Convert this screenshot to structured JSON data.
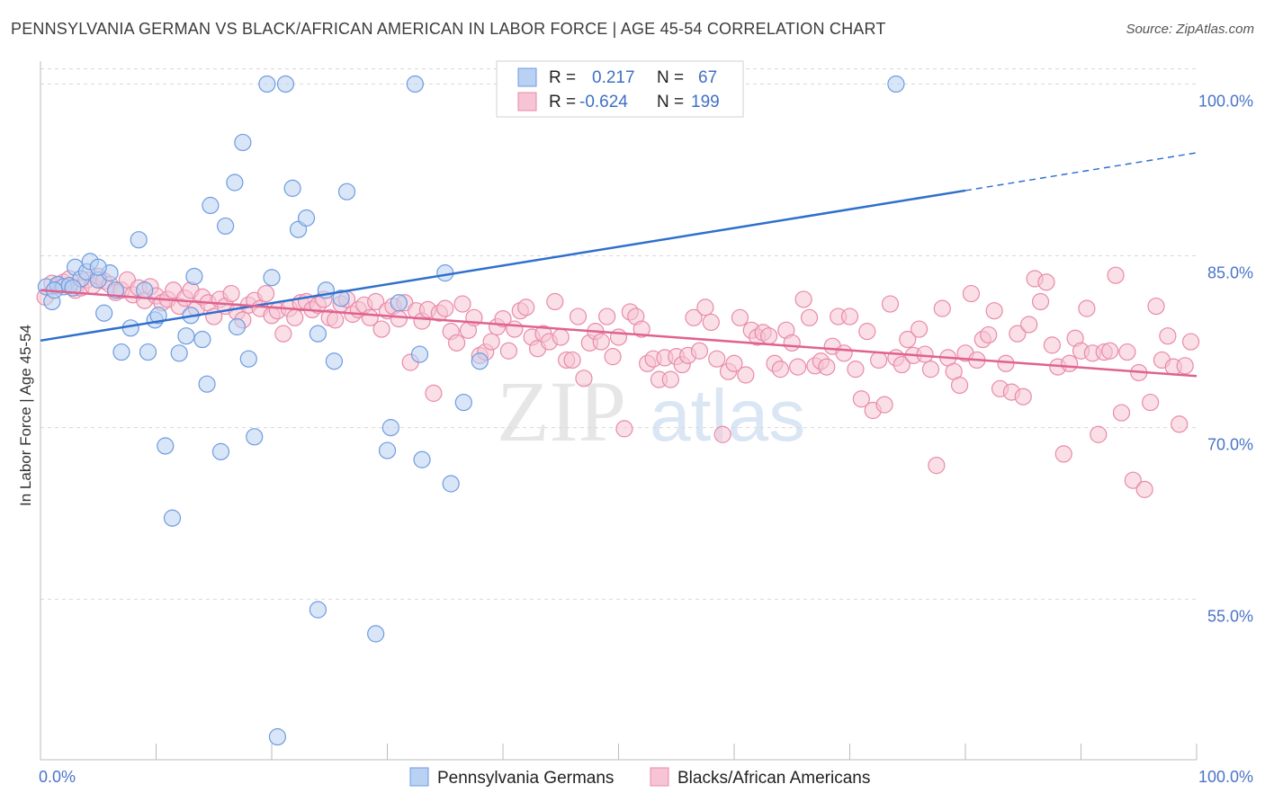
{
  "title": "PENNSYLVANIA GERMAN VS BLACK/AFRICAN AMERICAN IN LABOR FORCE | AGE 45-54 CORRELATION CHART",
  "source": "Source: ZipAtlas.com",
  "watermark": {
    "zip": "ZIP",
    "atlas": "atlas"
  },
  "colors": {
    "blue_fill": "#b9d1f3",
    "blue_stroke": "#6f9be0",
    "blue_line": "#2f6fcd",
    "pink_fill": "#f6c4d4",
    "pink_stroke": "#e98aaa",
    "pink_line": "#e0628f",
    "tick_text": "#4a74c9",
    "grid": "#d8d8d8"
  },
  "legend": {
    "rows": [
      {
        "r_label": "R =",
        "r_value": "0.217",
        "n_label": "N =",
        "n_value": "67"
      },
      {
        "r_label": "R =",
        "r_value": "-0.624",
        "n_label": "N =",
        "n_value": "199"
      }
    ],
    "placement": "top-center"
  },
  "chart_data": {
    "type": "scatter",
    "xlabel": "",
    "ylabel": "In Labor Force | Age 45-54",
    "xlim": [
      0,
      100
    ],
    "ylim": [
      41,
      102
    ],
    "x_tick_labels": [
      "0.0%",
      "100.0%"
    ],
    "y_ticks": [
      55,
      70,
      85,
      100
    ],
    "y_tick_labels": [
      "55.0%",
      "70.0%",
      "85.0%",
      "100.0%"
    ],
    "grid": true,
    "series": [
      {
        "name": "Pennsylvania Germans",
        "color": "blue",
        "trend": {
          "x0": 0,
          "y0": 77.6,
          "x1": 80,
          "y1": 90.7,
          "dash_to_x": 100,
          "dash_to_y": 94.0
        },
        "points": [
          [
            0.5,
            82.3
          ],
          [
            1.0,
            81.0
          ],
          [
            1.5,
            82.5
          ],
          [
            2.0,
            82.3
          ],
          [
            2.5,
            82.4
          ],
          [
            3.0,
            84.0
          ],
          [
            3.5,
            83.0
          ],
          [
            4.0,
            83.6
          ],
          [
            4.3,
            84.5
          ],
          [
            5.0,
            82.9
          ],
          [
            5.5,
            80.0
          ],
          [
            6.0,
            83.5
          ],
          [
            6.5,
            82.0
          ],
          [
            7.0,
            76.6
          ],
          [
            7.8,
            78.7
          ],
          [
            8.5,
            86.4
          ],
          [
            9.0,
            82.0
          ],
          [
            9.3,
            76.6
          ],
          [
            9.9,
            79.4
          ],
          [
            10.2,
            79.8
          ],
          [
            10.8,
            68.4
          ],
          [
            11.4,
            62.1
          ],
          [
            12.0,
            76.5
          ],
          [
            12.6,
            78.0
          ],
          [
            13.0,
            79.8
          ],
          [
            13.3,
            83.2
          ],
          [
            14.0,
            77.7
          ],
          [
            14.4,
            73.8
          ],
          [
            14.7,
            89.4
          ],
          [
            15.6,
            67.9
          ],
          [
            16.0,
            87.6
          ],
          [
            16.8,
            91.4
          ],
          [
            17.0,
            78.8
          ],
          [
            17.5,
            94.9
          ],
          [
            18.0,
            76.0
          ],
          [
            18.5,
            69.2
          ],
          [
            19.6,
            100.0
          ],
          [
            20.0,
            83.1
          ],
          [
            20.5,
            43.0
          ],
          [
            21.2,
            100.0
          ],
          [
            21.8,
            90.9
          ],
          [
            22.3,
            87.3
          ],
          [
            23.0,
            88.3
          ],
          [
            24.0,
            78.2
          ],
          [
            24.0,
            54.1
          ],
          [
            24.7,
            82.0
          ],
          [
            25.4,
            75.8
          ],
          [
            26.0,
            81.3
          ],
          [
            26.5,
            90.6
          ],
          [
            29.0,
            52.0
          ],
          [
            30.0,
            68.0
          ],
          [
            30.3,
            70.0
          ],
          [
            31.0,
            80.9
          ],
          [
            32.4,
            100.0
          ],
          [
            32.8,
            76.4
          ],
          [
            33.0,
            67.2
          ],
          [
            35.0,
            83.5
          ],
          [
            35.5,
            65.1
          ],
          [
            36.6,
            72.2
          ],
          [
            38.0,
            75.8
          ],
          [
            50.0,
            100.0
          ],
          [
            51.0,
            100.0
          ],
          [
            60.0,
            100.0
          ],
          [
            74.0,
            100.0
          ],
          [
            1.2,
            82.0
          ],
          [
            2.8,
            82.2
          ],
          [
            5.0,
            84.0
          ]
        ]
      },
      {
        "name": "Blacks/African Americans",
        "color": "pink",
        "trend": {
          "x0": 0,
          "y0": 82.0,
          "x1": 100,
          "y1": 74.5
        },
        "points": [
          [
            0.4,
            81.4
          ],
          [
            1.0,
            82.6
          ],
          [
            1.5,
            82.4
          ],
          [
            2.0,
            82.7
          ],
          [
            2.5,
            83.0
          ],
          [
            3.0,
            82.0
          ],
          [
            3.5,
            82.2
          ],
          [
            4.0,
            82.9
          ],
          [
            4.5,
            82.4
          ],
          [
            5.0,
            83.2
          ],
          [
            5.5,
            82.8
          ],
          [
            6.0,
            82.5
          ],
          [
            6.5,
            81.8
          ],
          [
            7.0,
            82.0
          ],
          [
            7.5,
            82.9
          ],
          [
            8.0,
            81.6
          ],
          [
            8.5,
            82.2
          ],
          [
            9.0,
            81.1
          ],
          [
            9.5,
            82.3
          ],
          [
            10.0,
            81.5
          ],
          [
            10.5,
            80.9
          ],
          [
            11.0,
            81.2
          ],
          [
            11.5,
            82.0
          ],
          [
            12.0,
            80.6
          ],
          [
            12.5,
            81.3
          ],
          [
            13.0,
            82.0
          ],
          [
            13.5,
            80.4
          ],
          [
            14.0,
            81.4
          ],
          [
            14.5,
            80.9
          ],
          [
            15.0,
            79.7
          ],
          [
            15.5,
            81.2
          ],
          [
            16.0,
            80.6
          ],
          [
            16.5,
            81.7
          ],
          [
            17.0,
            80.1
          ],
          [
            17.5,
            79.4
          ],
          [
            18.0,
            80.7
          ],
          [
            18.5,
            81.1
          ],
          [
            19.0,
            80.4
          ],
          [
            19.5,
            81.7
          ],
          [
            20.0,
            79.8
          ],
          [
            20.5,
            80.2
          ],
          [
            21.0,
            78.2
          ],
          [
            21.5,
            80.4
          ],
          [
            22.0,
            79.6
          ],
          [
            22.5,
            80.9
          ],
          [
            23.0,
            81.0
          ],
          [
            23.5,
            80.3
          ],
          [
            24.0,
            80.7
          ],
          [
            24.5,
            81.2
          ],
          [
            25.0,
            79.6
          ],
          [
            25.5,
            79.4
          ],
          [
            26.0,
            80.8
          ],
          [
            26.5,
            81.2
          ],
          [
            27.0,
            79.9
          ],
          [
            27.5,
            80.3
          ],
          [
            28.0,
            80.7
          ],
          [
            28.5,
            79.6
          ],
          [
            29.0,
            81.0
          ],
          [
            29.5,
            78.6
          ],
          [
            30.0,
            80.2
          ],
          [
            30.5,
            80.6
          ],
          [
            31.0,
            79.5
          ],
          [
            31.5,
            80.9
          ],
          [
            32.0,
            75.7
          ],
          [
            32.5,
            80.2
          ],
          [
            33.0,
            79.3
          ],
          [
            33.5,
            80.3
          ],
          [
            34.0,
            73.0
          ],
          [
            34.5,
            80.0
          ],
          [
            35.0,
            80.4
          ],
          [
            35.5,
            78.4
          ],
          [
            36.0,
            77.4
          ],
          [
            36.5,
            80.8
          ],
          [
            37.0,
            78.5
          ],
          [
            37.5,
            79.6
          ],
          [
            38.0,
            76.3
          ],
          [
            38.5,
            76.6
          ],
          [
            39.0,
            77.5
          ],
          [
            39.5,
            78.8
          ],
          [
            40.0,
            79.5
          ],
          [
            40.5,
            76.7
          ],
          [
            41.0,
            78.6
          ],
          [
            41.5,
            80.2
          ],
          [
            42.0,
            80.5
          ],
          [
            42.5,
            77.9
          ],
          [
            43.0,
            76.9
          ],
          [
            43.5,
            78.2
          ],
          [
            44.0,
            77.5
          ],
          [
            44.5,
            81.0
          ],
          [
            45.0,
            77.9
          ],
          [
            45.5,
            75.9
          ],
          [
            46.0,
            75.9
          ],
          [
            46.5,
            79.7
          ],
          [
            47.0,
            74.3
          ],
          [
            47.5,
            77.4
          ],
          [
            48.0,
            78.4
          ],
          [
            48.5,
            77.5
          ],
          [
            49.0,
            79.7
          ],
          [
            49.5,
            76.2
          ],
          [
            50.0,
            77.9
          ],
          [
            50.5,
            69.9
          ],
          [
            51.0,
            80.1
          ],
          [
            51.5,
            79.7
          ],
          [
            52.0,
            78.6
          ],
          [
            52.5,
            75.6
          ],
          [
            53.0,
            76.0
          ],
          [
            53.5,
            74.2
          ],
          [
            54.0,
            76.1
          ],
          [
            54.5,
            74.2
          ],
          [
            55.0,
            76.2
          ],
          [
            55.5,
            75.5
          ],
          [
            56.0,
            76.3
          ],
          [
            56.5,
            79.6
          ],
          [
            57.0,
            76.7
          ],
          [
            57.5,
            80.5
          ],
          [
            58.0,
            79.2
          ],
          [
            58.5,
            76.0
          ],
          [
            59.0,
            69.4
          ],
          [
            59.5,
            74.9
          ],
          [
            60.0,
            75.6
          ],
          [
            60.5,
            79.6
          ],
          [
            61.0,
            74.6
          ],
          [
            61.5,
            78.5
          ],
          [
            62.0,
            77.9
          ],
          [
            62.5,
            78.3
          ],
          [
            63.0,
            78.0
          ],
          [
            63.5,
            75.6
          ],
          [
            64.0,
            75.1
          ],
          [
            64.5,
            78.5
          ],
          [
            65.0,
            77.4
          ],
          [
            65.5,
            75.3
          ],
          [
            66.0,
            81.2
          ],
          [
            66.5,
            79.6
          ],
          [
            67.0,
            75.4
          ],
          [
            67.5,
            75.8
          ],
          [
            68.0,
            75.3
          ],
          [
            68.5,
            77.1
          ],
          [
            69.0,
            79.7
          ],
          [
            69.5,
            76.5
          ],
          [
            70.0,
            79.7
          ],
          [
            70.5,
            75.1
          ],
          [
            71.0,
            72.5
          ],
          [
            71.5,
            78.4
          ],
          [
            72.0,
            71.5
          ],
          [
            72.5,
            75.9
          ],
          [
            73.0,
            72.0
          ],
          [
            73.5,
            80.8
          ],
          [
            74.0,
            76.1
          ],
          [
            74.5,
            75.5
          ],
          [
            75.0,
            77.7
          ],
          [
            75.5,
            76.3
          ],
          [
            76.0,
            78.6
          ],
          [
            76.5,
            76.4
          ],
          [
            77.0,
            75.1
          ],
          [
            77.5,
            66.7
          ],
          [
            78.0,
            80.4
          ],
          [
            78.5,
            76.1
          ],
          [
            79.0,
            74.9
          ],
          [
            79.5,
            73.7
          ],
          [
            80.0,
            76.5
          ],
          [
            80.5,
            81.7
          ],
          [
            81.0,
            75.9
          ],
          [
            81.5,
            77.7
          ],
          [
            82.0,
            78.1
          ],
          [
            82.5,
            80.2
          ],
          [
            83.0,
            73.4
          ],
          [
            83.5,
            75.6
          ],
          [
            84.0,
            73.1
          ],
          [
            84.5,
            78.2
          ],
          [
            85.0,
            72.7
          ],
          [
            85.5,
            79.0
          ],
          [
            86.0,
            83.0
          ],
          [
            86.5,
            81.0
          ],
          [
            87.0,
            82.7
          ],
          [
            87.5,
            77.2
          ],
          [
            88.0,
            75.3
          ],
          [
            88.5,
            67.7
          ],
          [
            89.0,
            75.6
          ],
          [
            89.5,
            77.8
          ],
          [
            90.0,
            76.7
          ],
          [
            90.5,
            80.4
          ],
          [
            91.0,
            76.5
          ],
          [
            91.5,
            69.4
          ],
          [
            92.0,
            76.6
          ],
          [
            92.5,
            76.7
          ],
          [
            93.0,
            83.3
          ],
          [
            93.5,
            71.3
          ],
          [
            94.0,
            76.6
          ],
          [
            94.5,
            65.4
          ],
          [
            95.0,
            74.8
          ],
          [
            95.5,
            64.6
          ],
          [
            96.0,
            72.2
          ],
          [
            96.5,
            80.6
          ],
          [
            97.0,
            75.9
          ],
          [
            97.5,
            78.0
          ],
          [
            98.0,
            75.3
          ],
          [
            98.5,
            70.3
          ],
          [
            99.0,
            75.4
          ],
          [
            99.5,
            77.5
          ]
        ]
      }
    ]
  }
}
